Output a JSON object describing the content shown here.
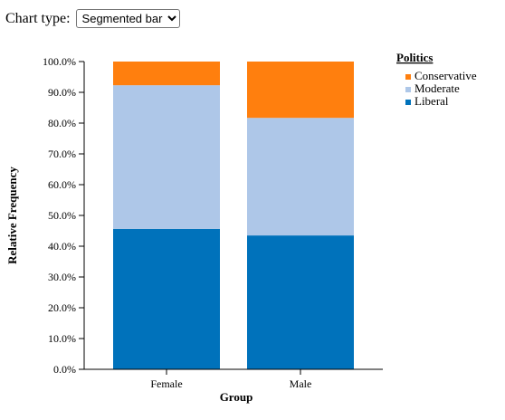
{
  "controls": {
    "chart_type_label": "Chart type:",
    "chart_type_selected": "Segmented bar"
  },
  "chart_data": {
    "type": "bar",
    "stacked": true,
    "categories": [
      "Female",
      "Male"
    ],
    "series": [
      {
        "name": "Liberal",
        "color": "#0072bb",
        "values": [
          45.6,
          43.5
        ]
      },
      {
        "name": "Moderate",
        "color": "#aec7e8",
        "values": [
          46.7,
          38.2
        ]
      },
      {
        "name": "Conservative",
        "color": "#ff7f0e",
        "values": [
          7.7,
          18.3
        ]
      }
    ],
    "legend_order": [
      "Conservative",
      "Moderate",
      "Liberal"
    ],
    "legend_title": "Politics",
    "xlabel": "Group",
    "ylabel": "Relative Frequency",
    "ylim": [
      0,
      100
    ],
    "yticks": [
      0,
      10,
      20,
      30,
      40,
      50,
      60,
      70,
      80,
      90,
      100
    ],
    "ytick_labels": [
      "0.0%",
      "10.0%",
      "20.0%",
      "30.0%",
      "40.0%",
      "50.0%",
      "60.0%",
      "70.0%",
      "80.0%",
      "90.0%",
      "100.0%"
    ],
    "legend_position": "top-right"
  }
}
